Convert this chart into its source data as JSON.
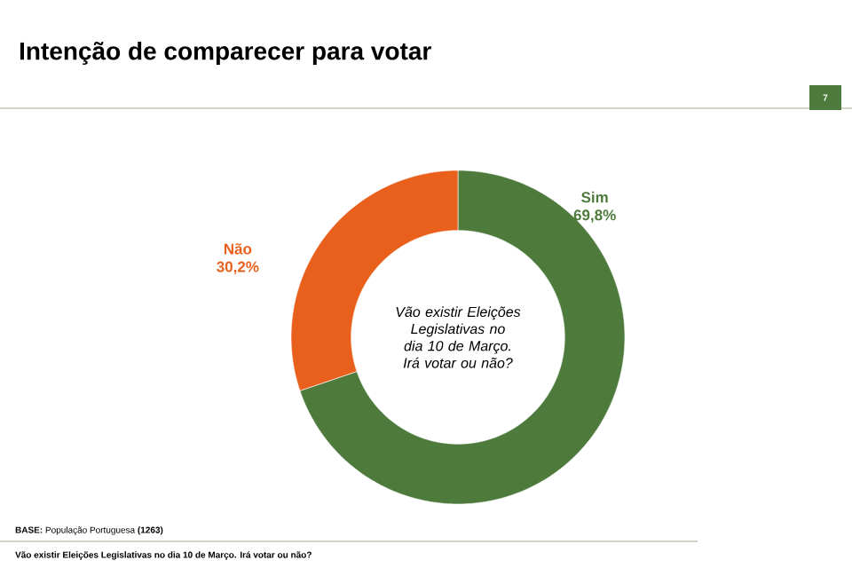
{
  "chart_data": {
    "type": "donut",
    "title": "Intenção de comparecer para votar",
    "categories": [
      "Sim",
      "Não"
    ],
    "values": [
      69.8,
      30.2
    ],
    "colors": [
      "#4e7a3c",
      "#e8601c"
    ],
    "value_labels": [
      "69,8%",
      "30,2%"
    ],
    "annotations": [
      "Vão existir Eleições Legislativas no dia 10 de Março. Irá votar ou não?",
      "7",
      "**BASE:** População Portuguesa **(1263)**",
      "Vão existir Eleições Legislativas no dia 10 de Março. Irá votar ou não?"
    ]
  }
}
